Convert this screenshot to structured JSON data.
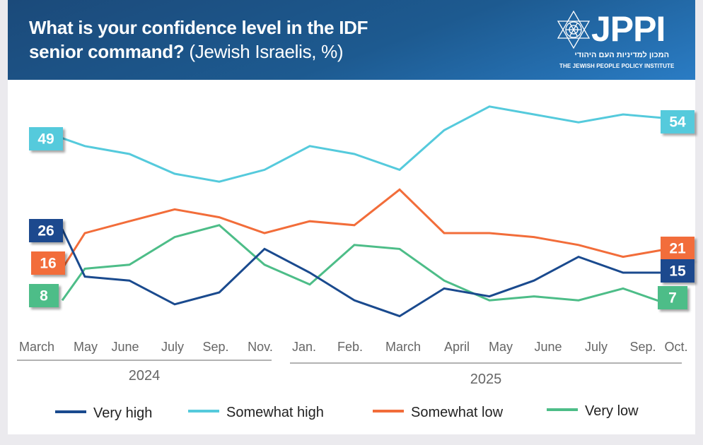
{
  "header": {
    "title_bold": "What is your confidence level in the IDF senior command?",
    "title_line1": "What is your confidence level in the IDF",
    "title_line2_bold": "senior command?",
    "title_line2_regular": " (Jewish Israelis, %)"
  },
  "logo": {
    "name": "JPPI",
    "hebrew": "המכון למדיניות העם היהודי",
    "english": "THE JEWISH PEOPLE POLICY INSTITUTE"
  },
  "chart_data": {
    "type": "line",
    "title": "What is your confidence level in the IDF senior command? (Jewish Israelis, %)",
    "xlabel": "",
    "ylabel": "%",
    "ylim": [
      0,
      60
    ],
    "grid": false,
    "legend_position": "bottom",
    "x": [
      "March",
      "May",
      "June",
      "July",
      "Sep.",
      "Nov.",
      "Jan.",
      "Feb.",
      "March",
      "April",
      "May",
      "June",
      "July",
      "Sep.",
      "Oct."
    ],
    "x_years": [
      {
        "label": "2024",
        "from": 0,
        "to": 5
      },
      {
        "label": "2025",
        "from": 6,
        "to": 14
      }
    ],
    "series": [
      {
        "name": "Very high",
        "color": "#1a4a8e",
        "values": [
          26,
          14,
          13,
          7,
          10,
          21,
          15,
          8,
          4,
          11,
          9,
          13,
          19,
          15,
          15
        ]
      },
      {
        "name": "Somewhat high",
        "color": "#55cadc",
        "values": [
          49,
          47,
          45,
          40,
          38,
          41,
          47,
          45,
          41,
          51,
          57,
          55,
          53,
          55,
          54
        ]
      },
      {
        "name": "Somewhat low",
        "color": "#f26d3a",
        "values": [
          16,
          25,
          28,
          31,
          29,
          25,
          28,
          27,
          36,
          25,
          25,
          24,
          22,
          19,
          21
        ]
      },
      {
        "name": "Very low",
        "color": "#4dbd88",
        "values": [
          8,
          16,
          17,
          24,
          27,
          17,
          12,
          22,
          21,
          13,
          8,
          9,
          8,
          11,
          7
        ]
      }
    ],
    "end_labels": {
      "start": {
        "Very high": "26",
        "Somewhat high": "49",
        "Somewhat low": "16",
        "Very low": "8"
      },
      "end": {
        "Very high": "15",
        "Somewhat high": "54",
        "Somewhat low": "21",
        "Very low": "7"
      }
    }
  }
}
